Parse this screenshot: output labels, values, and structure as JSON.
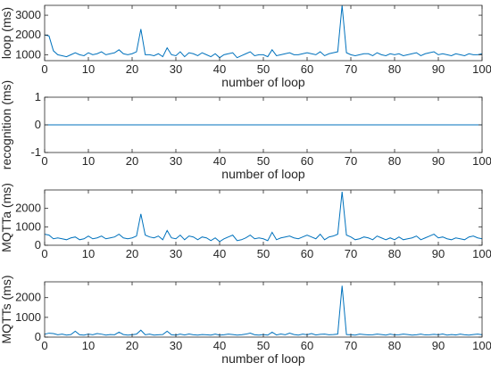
{
  "colors": {
    "series": "#0072BD",
    "axes": "#262626",
    "background": "#ffffff"
  },
  "chart_data": [
    {
      "type": "line",
      "xlabel": "number of loop",
      "ylabel": "loop (ms)",
      "xlim": [
        0,
        100
      ],
      "ylim": [
        700,
        3500
      ],
      "xticks": [
        0,
        10,
        20,
        30,
        40,
        50,
        60,
        70,
        80,
        90,
        100
      ],
      "yticks": [
        1000,
        2000,
        3000
      ],
      "grid": false,
      "series": [
        {
          "x": [
            0,
            1,
            2,
            3,
            4,
            5,
            6,
            7,
            8,
            9,
            10,
            11,
            12,
            13,
            14,
            15,
            16,
            17,
            18,
            19,
            20,
            21,
            22,
            23,
            24,
            25,
            26,
            27,
            28,
            29,
            30,
            31,
            32,
            33,
            34,
            35,
            36,
            37,
            38,
            39,
            40,
            41,
            42,
            43,
            44,
            45,
            46,
            47,
            48,
            49,
            50,
            51,
            52,
            53,
            54,
            55,
            56,
            57,
            58,
            59,
            60,
            61,
            62,
            63,
            64,
            65,
            66,
            67,
            68,
            69,
            70,
            71,
            72,
            73,
            74,
            75,
            76,
            77,
            78,
            79,
            80,
            81,
            82,
            83,
            84,
            85,
            86,
            87,
            88,
            89,
            90,
            91,
            92,
            93,
            94,
            95,
            96,
            97,
            98,
            99,
            100
          ],
          "y": [
            2000,
            1950,
            1200,
            1000,
            950,
            900,
            1000,
            1100,
            1000,
            950,
            1100,
            1000,
            1050,
            1150,
            1000,
            1050,
            1100,
            1250,
            1050,
            1000,
            1050,
            1150,
            2300,
            1000,
            1000,
            950,
            1050,
            900,
            1350,
            1000,
            950,
            1150,
            900,
            1100,
            1050,
            950,
            1100,
            1000,
            900,
            1050,
            850,
            1000,
            1050,
            1100,
            850,
            950,
            1050,
            1150,
            950,
            1000,
            1000,
            900,
            1250,
            950,
            1000,
            1050,
            1100,
            1000,
            1000,
            1050,
            1100,
            1050,
            1000,
            1150,
            950,
            1050,
            1100,
            1150,
            3500,
            1100,
            1000,
            950,
            1000,
            1050,
            1050,
            950,
            1100,
            1000,
            950,
            1050,
            1000,
            1050,
            950,
            1000,
            1050,
            1100,
            950,
            1050,
            1100,
            1150,
            1000,
            1050,
            1000,
            950,
            1050,
            1000,
            950,
            1050,
            1000,
            1000,
            1050
          ]
        }
      ]
    },
    {
      "type": "line",
      "xlabel": "number of loop",
      "ylabel": "recognition (ms)",
      "xlim": [
        0,
        100
      ],
      "ylim": [
        -1,
        1
      ],
      "xticks": [
        0,
        10,
        20,
        30,
        40,
        50,
        60,
        70,
        80,
        90,
        100
      ],
      "yticks": [
        -1,
        0,
        1
      ],
      "grid": false,
      "series": [
        {
          "x": [
            0,
            100
          ],
          "y": [
            0,
            0
          ]
        }
      ]
    },
    {
      "type": "line",
      "xlabel": "",
      "ylabel": "MQTTa (ms)",
      "xlim": [
        0,
        100
      ],
      "ylim": [
        0,
        3000
      ],
      "xticks": [
        0,
        10,
        20,
        30,
        40,
        50,
        60,
        70,
        80,
        90,
        100
      ],
      "yticks": [
        0,
        1000,
        2000
      ],
      "grid": false,
      "series": [
        {
          "x": [
            0,
            1,
            2,
            3,
            4,
            5,
            6,
            7,
            8,
            9,
            10,
            11,
            12,
            13,
            14,
            15,
            16,
            17,
            18,
            19,
            20,
            21,
            22,
            23,
            24,
            25,
            26,
            27,
            28,
            29,
            30,
            31,
            32,
            33,
            34,
            35,
            36,
            37,
            38,
            39,
            40,
            41,
            42,
            43,
            44,
            45,
            46,
            47,
            48,
            49,
            50,
            51,
            52,
            53,
            54,
            55,
            56,
            57,
            58,
            59,
            60,
            61,
            62,
            63,
            64,
            65,
            66,
            67,
            68,
            69,
            70,
            71,
            72,
            73,
            74,
            75,
            76,
            77,
            78,
            79,
            80,
            81,
            82,
            83,
            84,
            85,
            86,
            87,
            88,
            89,
            90,
            91,
            92,
            93,
            94,
            95,
            96,
            97,
            98,
            99,
            100
          ],
          "y": [
            600,
            550,
            350,
            400,
            350,
            300,
            400,
            450,
            300,
            350,
            500,
            350,
            400,
            500,
            350,
            400,
            450,
            600,
            400,
            350,
            400,
            500,
            1700,
            550,
            450,
            400,
            500,
            300,
            800,
            400,
            350,
            550,
            300,
            500,
            450,
            300,
            450,
            400,
            250,
            400,
            200,
            350,
            450,
            550,
            250,
            300,
            400,
            550,
            350,
            400,
            350,
            250,
            700,
            300,
            400,
            450,
            500,
            400,
            350,
            450,
            550,
            450,
            350,
            600,
            300,
            450,
            500,
            600,
            2900,
            550,
            450,
            300,
            350,
            450,
            400,
            300,
            500,
            400,
            300,
            400,
            300,
            450,
            300,
            350,
            400,
            500,
            300,
            400,
            500,
            600,
            400,
            450,
            350,
            300,
            400,
            350,
            300,
            450,
            500,
            400,
            350
          ]
        }
      ]
    },
    {
      "type": "line",
      "xlabel": "number of loop",
      "ylabel": "MQTTs (ms)",
      "xlim": [
        0,
        100
      ],
      "ylim": [
        0,
        2800
      ],
      "xticks": [
        0,
        10,
        20,
        30,
        40,
        50,
        60,
        70,
        80,
        90,
        100
      ],
      "yticks": [
        0,
        1000,
        2000
      ],
      "grid": false,
      "series": [
        {
          "x": [
            0,
            1,
            2,
            3,
            4,
            5,
            6,
            7,
            8,
            9,
            10,
            11,
            12,
            13,
            14,
            15,
            16,
            17,
            18,
            19,
            20,
            21,
            22,
            23,
            24,
            25,
            26,
            27,
            28,
            29,
            30,
            31,
            32,
            33,
            34,
            35,
            36,
            37,
            38,
            39,
            40,
            41,
            42,
            43,
            44,
            45,
            46,
            47,
            48,
            49,
            50,
            51,
            52,
            53,
            54,
            55,
            56,
            57,
            58,
            59,
            60,
            61,
            62,
            63,
            64,
            65,
            66,
            67,
            68,
            69,
            70,
            71,
            72,
            73,
            74,
            75,
            76,
            77,
            78,
            79,
            80,
            81,
            82,
            83,
            84,
            85,
            86,
            87,
            88,
            89,
            90,
            91,
            92,
            93,
            94,
            95,
            96,
            97,
            98,
            99,
            100
          ],
          "y": [
            150,
            200,
            180,
            120,
            150,
            100,
            130,
            300,
            120,
            100,
            150,
            120,
            180,
            150,
            100,
            130,
            120,
            250,
            130,
            100,
            120,
            150,
            350,
            120,
            150,
            100,
            120,
            130,
            300,
            120,
            100,
            150,
            110,
            160,
            120,
            100,
            130,
            120,
            100,
            150,
            100,
            120,
            150,
            130,
            100,
            120,
            150,
            200,
            120,
            100,
            130,
            100,
            250,
            110,
            160,
            120,
            200,
            130,
            100,
            150,
            120,
            180,
            110,
            140,
            150,
            120,
            130,
            150,
            2600,
            130,
            120,
            100,
            150,
            130,
            110,
            120,
            150,
            130,
            100,
            150,
            110,
            120,
            150,
            130,
            100,
            120,
            150,
            110,
            120,
            140,
            120,
            160,
            100,
            130,
            110,
            150,
            120,
            100,
            130,
            150,
            120
          ]
        }
      ]
    }
  ]
}
